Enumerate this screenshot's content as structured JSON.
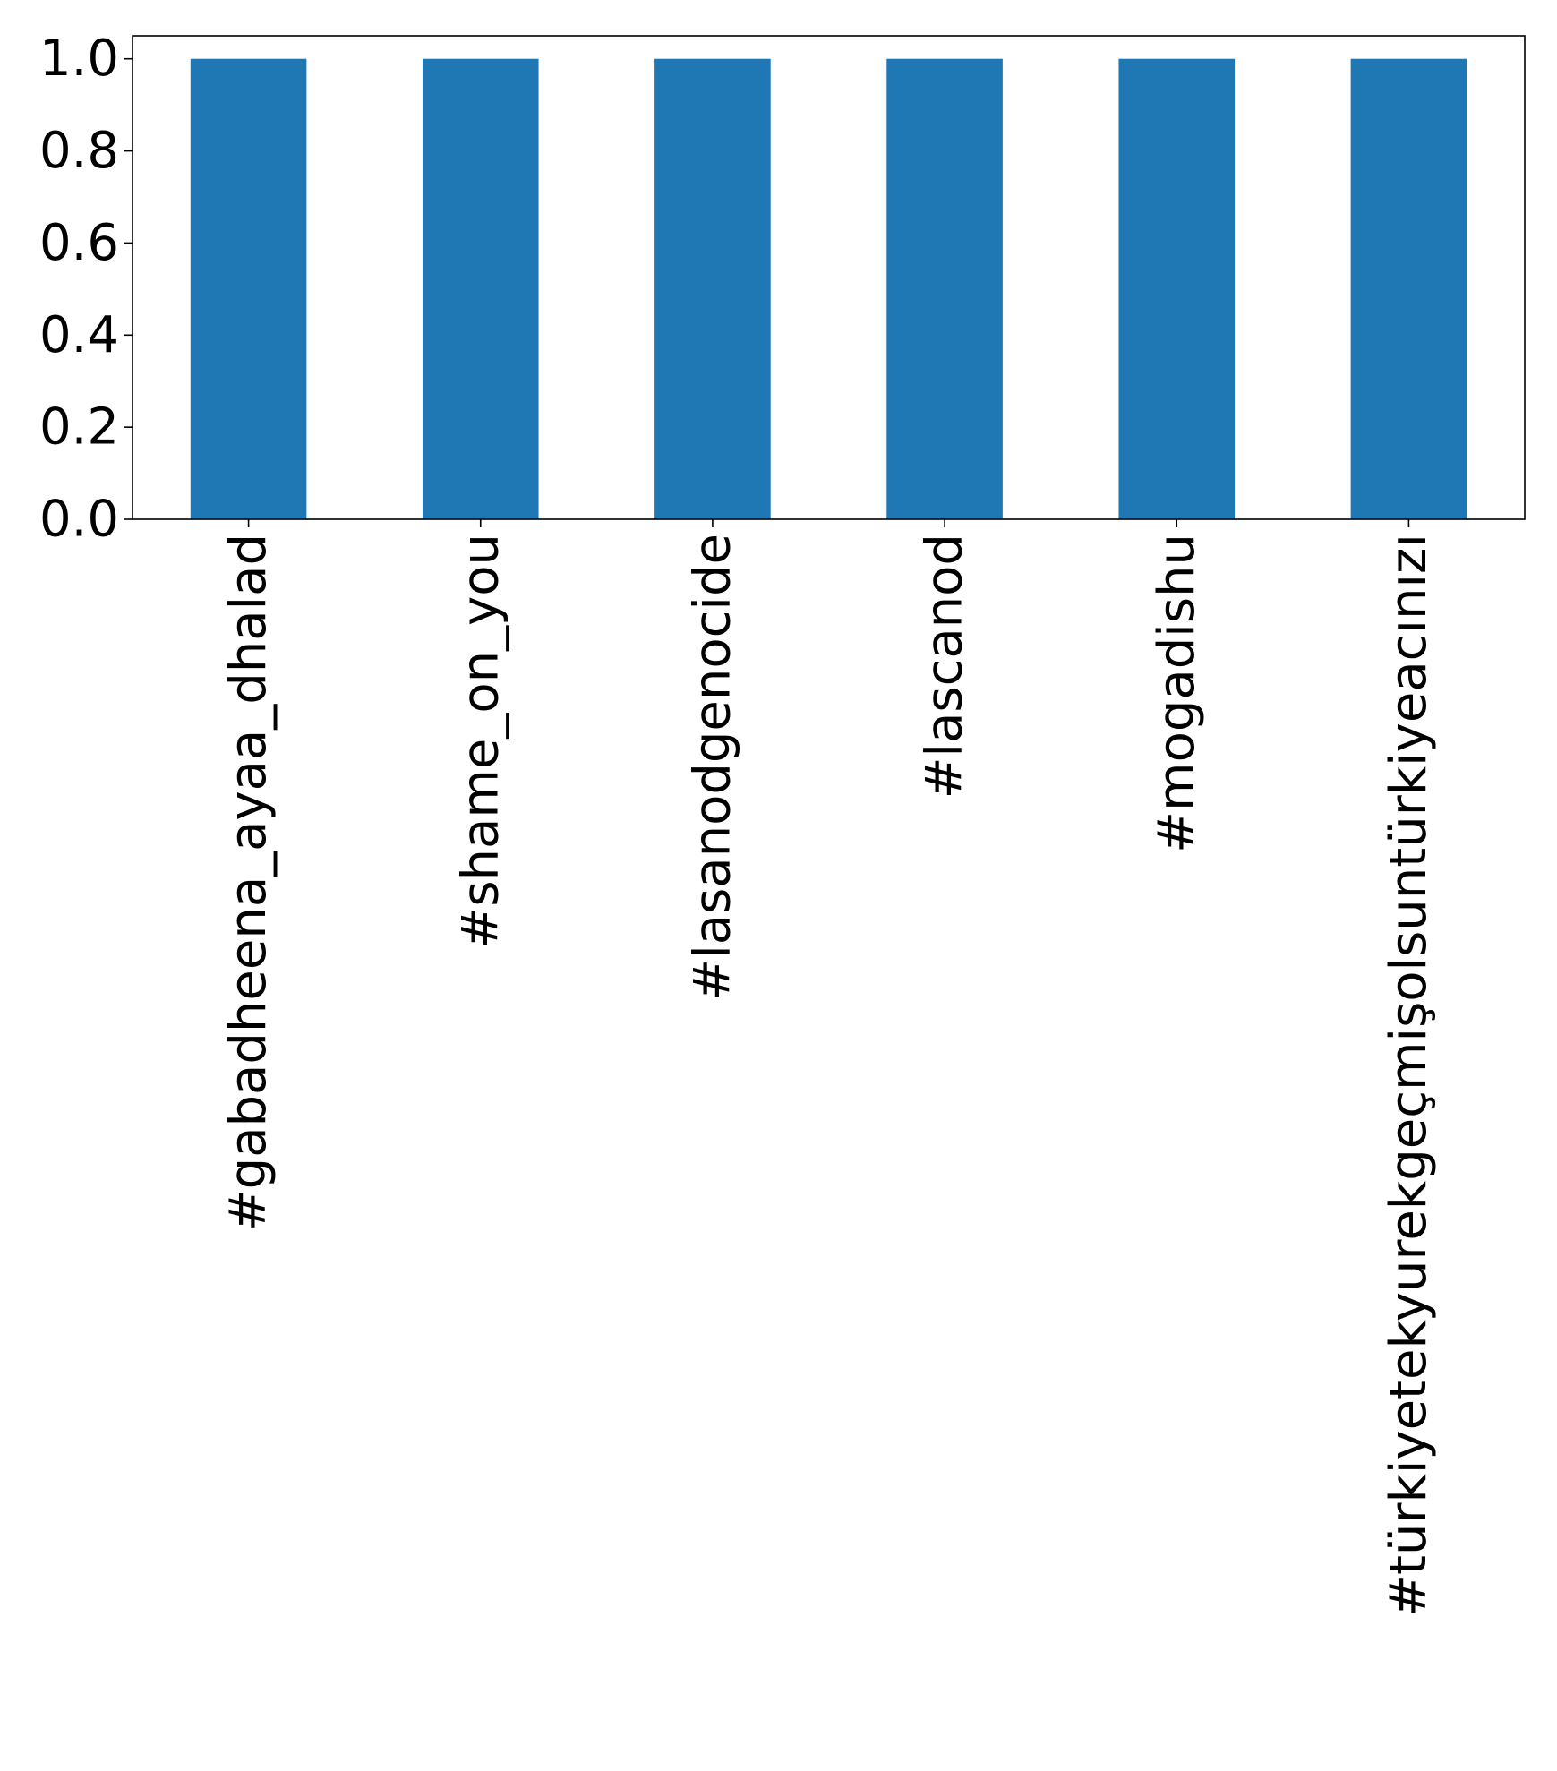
{
  "chart_data": {
    "type": "bar",
    "categories": [
      "#gabadheena_ayaa_dhalad",
      "#shame_on_you",
      "#lasanodgenocide",
      "#lascanod",
      "#mogadishu",
      "#türkiyetekyurekgeçmişolsuntürkiyeacınızı"
    ],
    "values": [
      1.0,
      1.0,
      1.0,
      1.0,
      1.0,
      1.0
    ],
    "title": "",
    "xlabel": "",
    "ylabel": "",
    "ylim": [
      0,
      1.05
    ],
    "yticks": [
      0.0,
      0.2,
      0.4,
      0.6,
      0.8,
      1.0
    ],
    "ytick_labels": [
      "0.0",
      "0.2",
      "0.4",
      "0.6",
      "0.8",
      "1.0"
    ],
    "bar_color": "#1f77b4",
    "grid": false,
    "legend": "none"
  }
}
